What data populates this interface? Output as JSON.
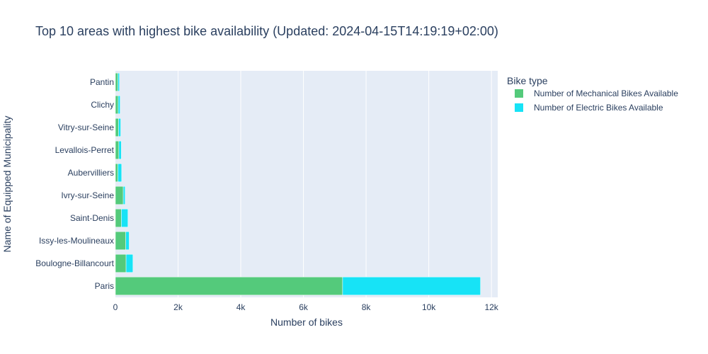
{
  "chart_data": {
    "type": "bar",
    "orientation": "horizontal",
    "barmode": "stack",
    "title": "Top 10 areas with highest bike availability (Updated: 2024-04-15T14:19:19+02:00)",
    "xlabel": "Number of bikes",
    "ylabel": "Name of Equipped Municipality",
    "xlim": [
      0,
      12200
    ],
    "xticks": [
      0,
      2000,
      4000,
      6000,
      8000,
      10000,
      12000
    ],
    "xtick_labels": [
      "0",
      "2k",
      "4k",
      "6k",
      "8k",
      "10k",
      "12k"
    ],
    "grid": true,
    "legend": {
      "title": "Bike type",
      "position": "right"
    },
    "categories": [
      "Paris",
      "Boulogne-Billancourt",
      "Issy-les-Moulineaux",
      "Saint-Denis",
      "Ivry-sur-Seine",
      "Aubervilliers",
      "Levallois-Perret",
      "Vitry-sur-Seine",
      "Clichy",
      "Pantin"
    ],
    "series": [
      {
        "name": "Number of Mechanical Bikes Available",
        "color": "#54ca7b",
        "values": [
          7250,
          340,
          330,
          190,
          250,
          80,
          110,
          100,
          90,
          80
        ]
      },
      {
        "name": "Number of Electric Bikes Available",
        "color": "#17e3f6",
        "values": [
          4400,
          220,
          110,
          210,
          60,
          120,
          80,
          70,
          60,
          50
        ]
      }
    ],
    "colors": {
      "plot_bg": "#e5ecf6",
      "grid": "#ffffff",
      "text": "#2a3f5f"
    }
  }
}
